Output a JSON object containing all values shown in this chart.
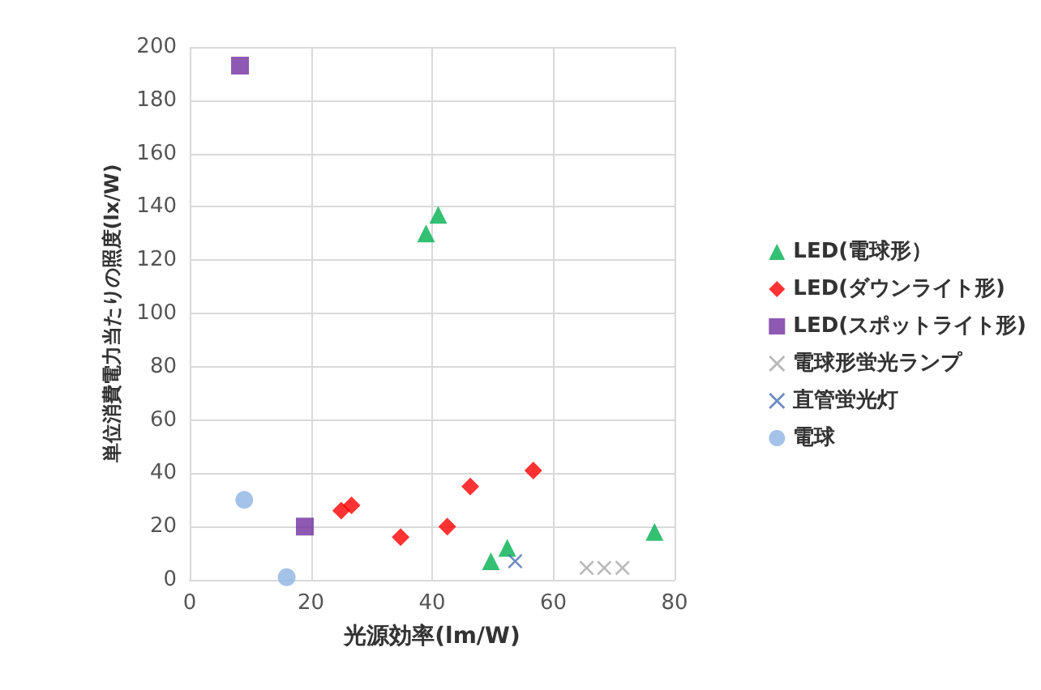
{
  "chart_data": {
    "type": "scatter",
    "xlabel": "光源効率(lm/W)",
    "ylabel": "単位消費電力当たりの照度(lx/W)",
    "xlim": [
      0,
      80
    ],
    "xticks": [
      0,
      20,
      40,
      60,
      80
    ],
    "ylim": [
      0,
      200
    ],
    "yticks": [
      0,
      20,
      40,
      60,
      80,
      100,
      120,
      140,
      160,
      180,
      200
    ],
    "grid": true,
    "legend": "right",
    "series": [
      {
        "name": "LED(電球形）",
        "color": "#00b050",
        "marker": "triangle",
        "x": [
          39,
          41,
          49.7,
          52.4,
          76.7
        ],
        "values": [
          130,
          137,
          7,
          12,
          18
        ]
      },
      {
        "name": "LED(ダウンライト形)",
        "color": "#ff0000",
        "marker": "diamond",
        "x": [
          25,
          26.7,
          34.8,
          42.5,
          46.3,
          56.7
        ],
        "values": [
          26,
          28,
          16,
          20,
          35,
          41
        ]
      },
      {
        "name": "LED(スポットライト形)",
        "color": "#7030a0",
        "marker": "square",
        "x": [
          8.3,
          19
        ],
        "values": [
          193,
          20
        ]
      },
      {
        "name": "電球形蛍光ランプ",
        "color": "#a6a6a6",
        "marker": "cross",
        "x": [
          65.5,
          68.4,
          71.4
        ],
        "values": [
          4.5,
          4.5,
          4.5
        ]
      },
      {
        "name": "直管蛍光灯",
        "color": "#4a6fb5",
        "marker": "cross",
        "x": [
          53.7
        ],
        "values": [
          7
        ]
      },
      {
        "name": "電球",
        "color": "#8eb4e3",
        "marker": "circle",
        "x": [
          9,
          16
        ],
        "values": [
          30,
          1
        ]
      }
    ]
  }
}
